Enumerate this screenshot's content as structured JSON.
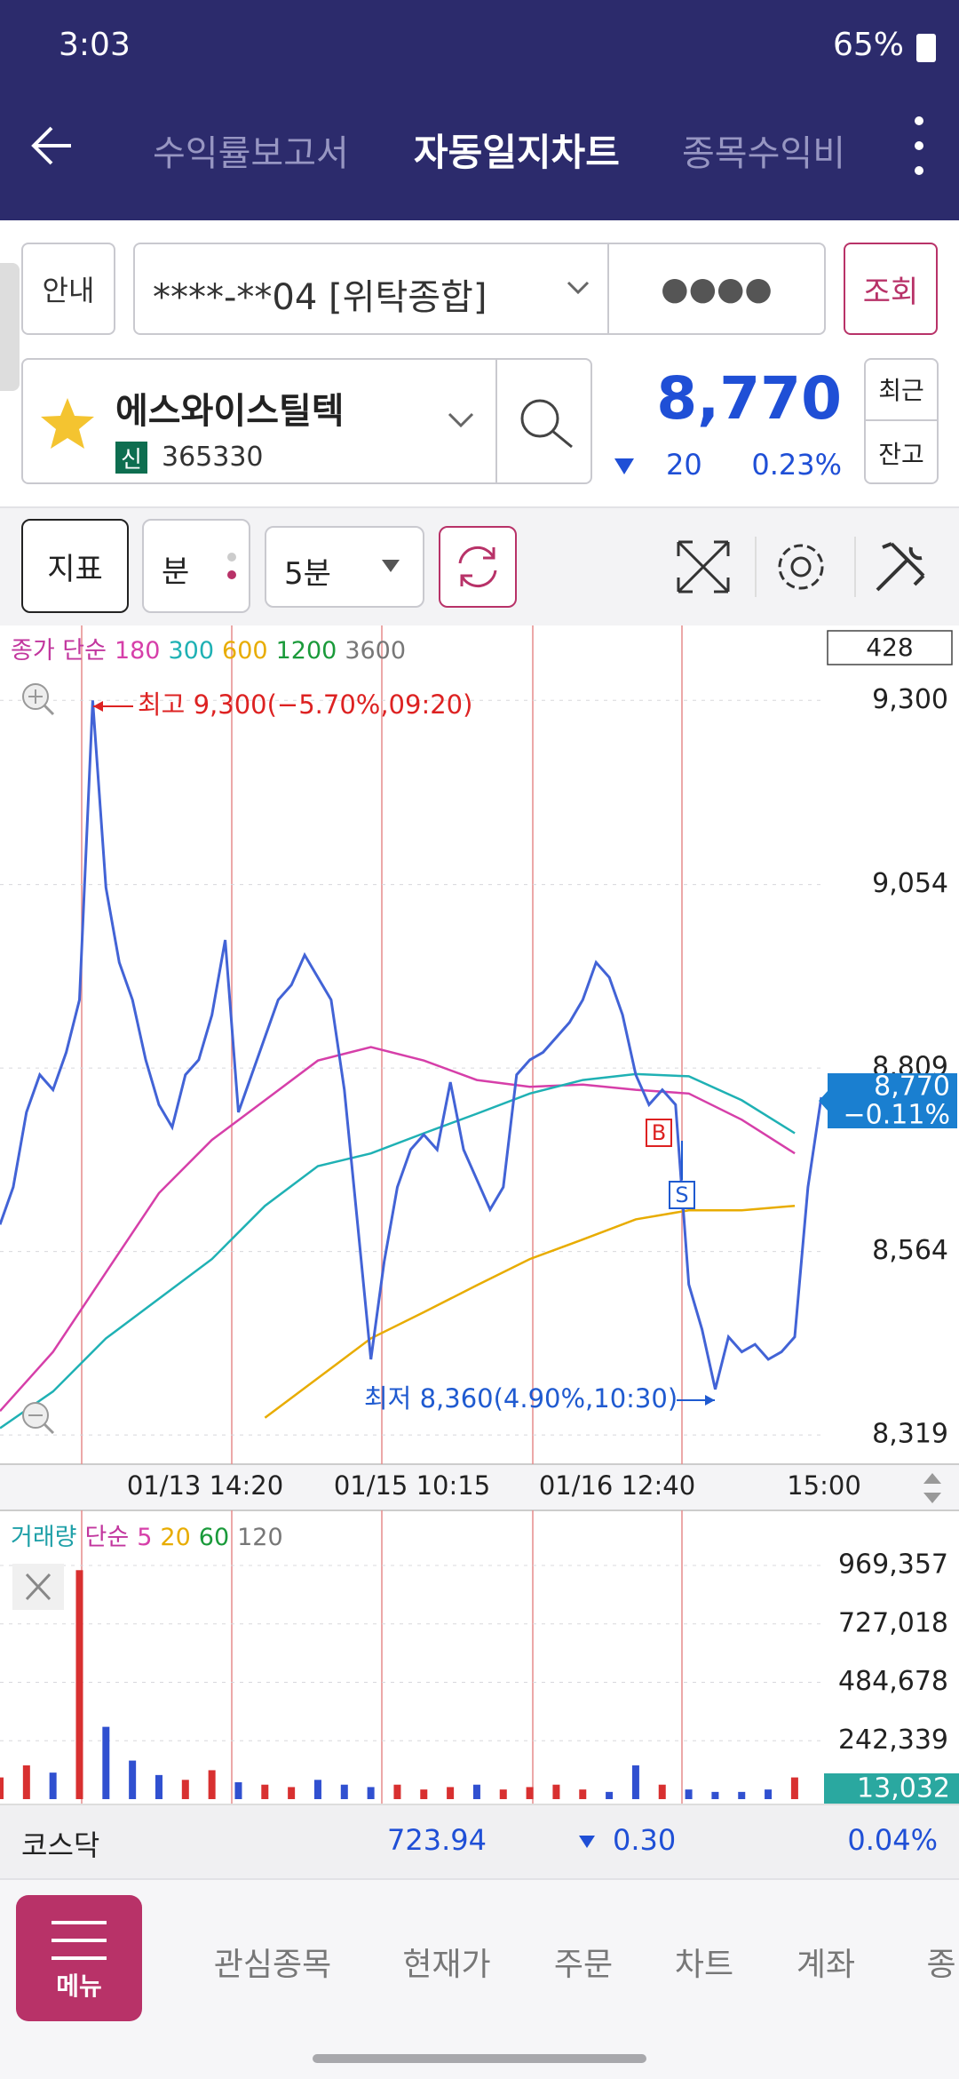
{
  "status_bar": {
    "time": "3:03",
    "battery": "65%"
  },
  "header": {
    "tabs": [
      "수익률보고서",
      "자동일지차트",
      "종목수익비"
    ]
  },
  "account": {
    "guide": "안내",
    "number": "****-**04 [위탁종합]",
    "password": "●●●●",
    "query": "조회"
  },
  "stock": {
    "name": "에스와이스틸텍",
    "badge": "신",
    "code": "365330",
    "price": "8,770",
    "change": "20",
    "change_rate": "0.23%",
    "recent": "최근",
    "balance": "잔고"
  },
  "toolbar": {
    "indicator": "지표",
    "minute": "분",
    "period": "5분"
  },
  "price_chart": {
    "type": "line",
    "legend": [
      {
        "text": "종가 단순",
        "color": "#c2369e"
      },
      {
        "text": "180",
        "color": "#d63fa9"
      },
      {
        "text": "300",
        "color": "#1fb1b4"
      },
      {
        "text": "600",
        "color": "#e8ac00"
      },
      {
        "text": "1200",
        "color": "#1a9a3a"
      },
      {
        "text": "3600",
        "color": "#777777"
      }
    ],
    "count": "428",
    "ylim": [
      8280,
      9400
    ],
    "yticks": [
      {
        "value": 8319,
        "label": "8,319"
      },
      {
        "value": 8564,
        "label": "8,564"
      },
      {
        "value": 8809,
        "label": "8,809"
      },
      {
        "value": 9054,
        "label": "9,054"
      },
      {
        "value": 9300,
        "label": "9,300"
      }
    ],
    "grid": true,
    "x_labels": [
      "01/13 14:20",
      "01/15 10:15",
      "01/16 12:40",
      "15:00"
    ],
    "high_label": "최고 9,300(−5.70%,09:20)",
    "low_label": "최저 8,360(4.90%,10:30)",
    "buy": "B",
    "sell": "S",
    "current_price": "8,770",
    "current_change": "−0.11%",
    "color": "#4263d6",
    "values": [
      8600,
      8650,
      8750,
      8800,
      8780,
      8830,
      8900,
      9300,
      9050,
      8950,
      8900,
      8820,
      8760,
      8730,
      8800,
      8820,
      8880,
      8980,
      8750,
      8800,
      8850,
      8900,
      8920,
      8960,
      8930,
      8900,
      8780,
      8600,
      8420,
      8550,
      8650,
      8700,
      8720,
      8700,
      8790,
      8700,
      8660,
      8620,
      8650,
      8800,
      8820,
      8830,
      8850,
      8870,
      8900,
      8950,
      8930,
      8880,
      8800,
      8760,
      8780,
      8760,
      8520,
      8460,
      8380,
      8450,
      8430,
      8440,
      8420,
      8430,
      8450,
      8650,
      8770
    ],
    "series": [
      {
        "color": "#d63fa9",
        "values": [
          8351,
          8430,
          8536,
          8642,
          8713,
          8766,
          8819,
          8837,
          8819,
          8793,
          8784,
          8787,
          8780,
          8775,
          8740,
          8695
        ]
      },
      {
        "color": "#1fb1b4",
        "values": [
          8328,
          8377,
          8448,
          8501,
          8554,
          8625,
          8678,
          8695,
          8722,
          8748,
          8775,
          8793,
          8801,
          8798,
          8766,
          8722
        ]
      },
      {
        "color": "#e8ac00",
        "values": [
          null,
          null,
          null,
          null,
          null,
          8342,
          8395,
          8448,
          8483,
          8519,
          8554,
          8580,
          8607,
          8619,
          8619,
          8625
        ]
      }
    ]
  },
  "volume_chart": {
    "type": "bar",
    "legend": [
      {
        "text": "거래량",
        "color": "#1fa0a8"
      },
      {
        "text": "단순",
        "color": "#c2369e"
      },
      {
        "text": "5",
        "color": "#d63fa9"
      },
      {
        "text": "20",
        "color": "#e8ac00"
      },
      {
        "text": "60",
        "color": "#1a9a3a"
      },
      {
        "text": "120",
        "color": "#777777"
      }
    ],
    "ylim": [
      0,
      1198000
    ],
    "yticks": [
      {
        "value": 242339,
        "label": "242,339"
      },
      {
        "value": 484678,
        "label": "484,678"
      },
      {
        "value": 727018,
        "label": "727,018"
      },
      {
        "value": 969357,
        "label": "969,357"
      }
    ],
    "values": [
      90000,
      140000,
      110000,
      950000,
      300000,
      160000,
      100000,
      80000,
      120000,
      70000,
      60000,
      50000,
      80000,
      60000,
      50000,
      60000,
      40000,
      50000,
      60000,
      40000,
      50000,
      60000,
      40000,
      30000,
      140000,
      60000,
      40000,
      30000,
      30000,
      40000,
      90000
    ],
    "up_color": "#d83030",
    "down_color": "#3050d0",
    "current": "13,032"
  },
  "index": {
    "name": "코스닥",
    "value": "723.94",
    "change": "0.30",
    "rate": "0.04%"
  },
  "nav": {
    "menu": "메뉴",
    "items": [
      "관심종목",
      "현재가",
      "주문",
      "차트",
      "계좌",
      "종"
    ]
  }
}
